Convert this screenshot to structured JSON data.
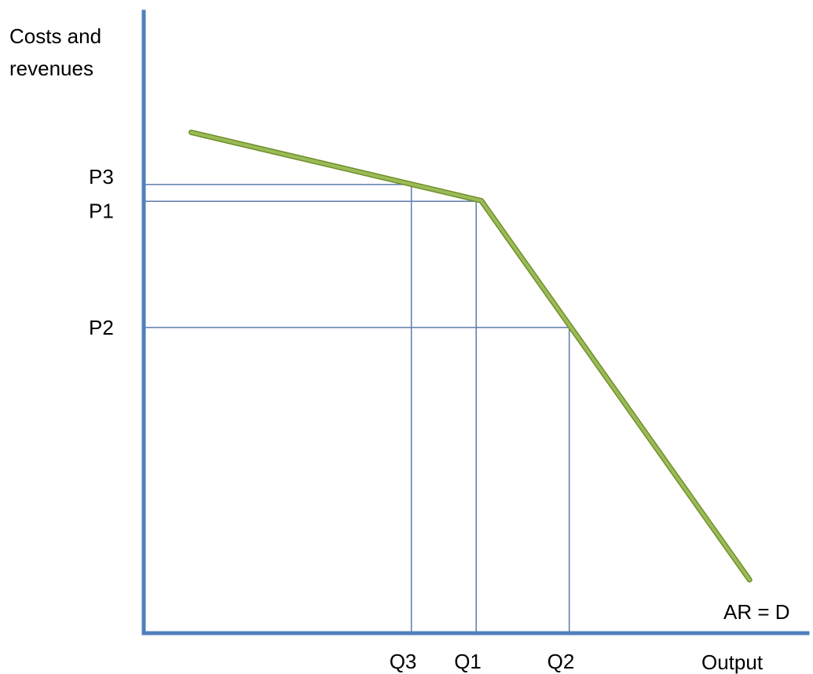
{
  "colors": {
    "axis": "#4f7fbe",
    "guide": "#5b7cac",
    "demand": "#9bbb59",
    "demand_edge": "#6f8f2a"
  },
  "chart_data": {
    "type": "line",
    "title": "",
    "ylabel_line1": "Costs and",
    "ylabel_line2": "revenues",
    "xlabel": "Output",
    "grid": false,
    "xlim": [
      0,
      100
    ],
    "ylim": [
      0,
      100
    ],
    "series": [
      {
        "name": "AR = D",
        "x": [
          7.4,
          52.6,
          94.4
        ],
        "y": [
          80.6,
          69.6,
          8.6
        ]
      }
    ],
    "reference_points": [
      {
        "q_label": "Q3",
        "p_label": "P3",
        "x": 41.7,
        "y": 72.2
      },
      {
        "q_label": "Q1",
        "p_label": "P1",
        "x": 51.8,
        "y": 69.5
      },
      {
        "q_label": "Q2",
        "p_label": "P2",
        "x": 66.3,
        "y": 49.2
      }
    ]
  }
}
